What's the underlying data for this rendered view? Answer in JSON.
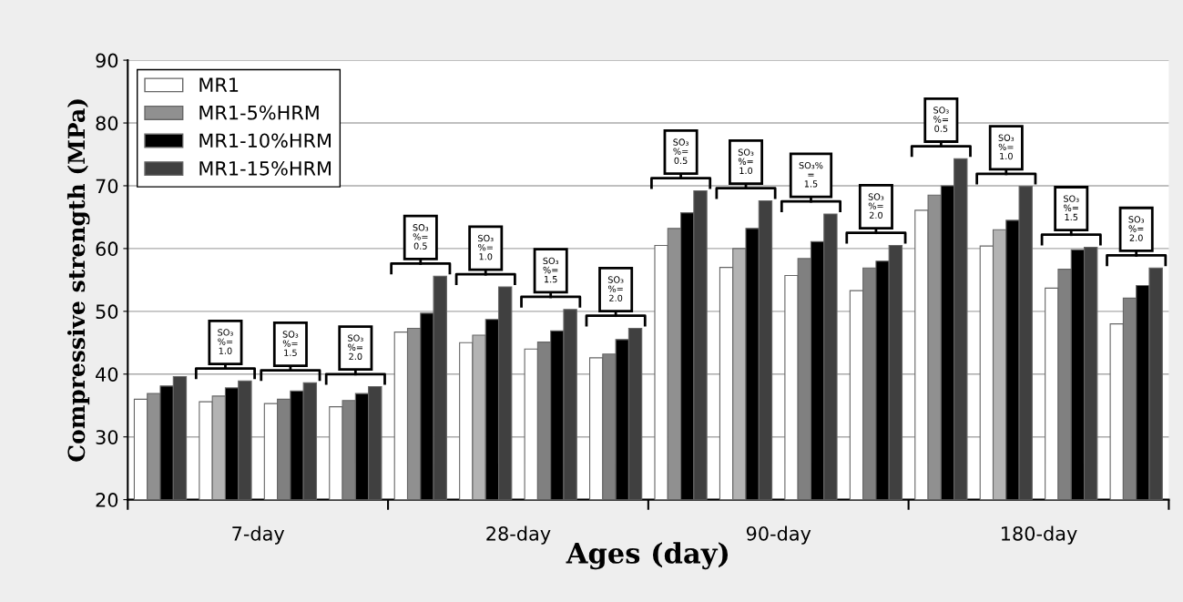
{
  "chart_data": {
    "type": "bar",
    "xlabel": "Ages (day)",
    "ylabel": "Compressive strength (MPa)",
    "categories": [
      null,
      null,
      null,
      null,
      null,
      null,
      null,
      null,
      null,
      null,
      null,
      null,
      null,
      null,
      null,
      null
    ],
    "series": [
      {
        "name": "MR1",
        "color": "#ffffff",
        "values": [
          36.0,
          35.6,
          35.3,
          34.8,
          46.7,
          45.0,
          44.0,
          42.6,
          60.5,
          57.0,
          55.7,
          53.3,
          66.1,
          60.4,
          53.7,
          48.0
        ]
      },
      {
        "name": "MR1-5%HRM",
        "color": "#909090",
        "colors": [
          "#909090",
          "#b3b3b3",
          "#808080",
          "#808080",
          "#909090",
          "#b3b3b3",
          "#808080",
          "#808080",
          "#909090",
          "#b3b3b3",
          "#808080",
          "#808080",
          "#909090",
          "#b3b3b3",
          "#808080",
          "#808080"
        ],
        "values": [
          36.9,
          36.5,
          36.0,
          35.8,
          47.3,
          46.2,
          45.1,
          43.2,
          63.2,
          60.0,
          58.4,
          56.9,
          68.5,
          63.0,
          56.7,
          52.1
        ]
      },
      {
        "name": "MR1-10%HRM",
        "color": "#000000",
        "values": [
          38.1,
          37.8,
          37.3,
          36.9,
          49.7,
          48.7,
          46.9,
          45.5,
          65.7,
          63.2,
          61.1,
          58.0,
          70.0,
          64.5,
          59.8,
          54.1
        ]
      },
      {
        "name": "MR1-15%HRM",
        "color": "#404040",
        "values": [
          39.6,
          38.9,
          38.6,
          38.0,
          55.6,
          53.9,
          50.3,
          47.3,
          69.2,
          67.6,
          65.5,
          60.5,
          74.3,
          69.9,
          60.2,
          56.9
        ]
      }
    ],
    "ylim": [
      20,
      90
    ],
    "yticks": [
      20,
      30,
      40,
      50,
      60,
      70,
      80,
      90
    ],
    "grid": "y",
    "legend": "top left",
    "annotations": [
      "7-day",
      "28-day",
      "90-day",
      "180-day",
      "SO₃\n%=\n1.0",
      "SO₃\n%=\n1.5",
      "SO₃\n%=\n2.0",
      "SO₃\n%=\n0.5",
      "SO₃\n%=\n1.0",
      "SO₃\n%=\n1.5",
      "SO₃\n%=\n2.0",
      "SO₃\n%=\n0.5",
      "SO₃\n%=\n1.0",
      "SO₃%\n=\n1.5",
      "SO₃\n%=\n2.0",
      "SO₃\n%=\n0.5",
      "SO₃\n%=\n1.0",
      "SO₃\n%=\n1.5",
      "SO₃\n%=\n2.0"
    ]
  }
}
